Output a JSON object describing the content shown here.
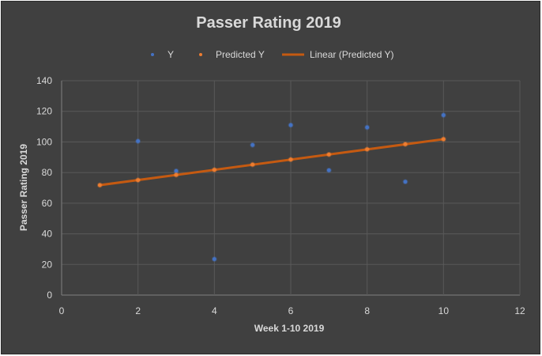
{
  "chart_data": {
    "type": "scatter",
    "title": "Passer Rating 2019",
    "xlabel": "Week 1-10 2019",
    "ylabel": "Passer Rating 2019",
    "xlim": [
      0,
      12
    ],
    "ylim": [
      0,
      140
    ],
    "x_ticks": [
      0,
      2,
      4,
      6,
      8,
      10,
      12
    ],
    "y_ticks": [
      0,
      20,
      40,
      60,
      80,
      100,
      120,
      140
    ],
    "grid": true,
    "legend_position": "top",
    "series": [
      {
        "name": "Y",
        "kind": "points",
        "color": "#4472c4",
        "x": [
          2,
          3,
          4,
          5,
          6,
          7,
          8,
          9,
          10
        ],
        "y": [
          100.5,
          81,
          23.5,
          98,
          111,
          81.5,
          109.5,
          74,
          117.5
        ]
      },
      {
        "name": "Predicted Y",
        "kind": "points",
        "color": "#ed7d31",
        "x": [
          1,
          2,
          3,
          4,
          5,
          6,
          7,
          8,
          9,
          10
        ],
        "y": [
          71.8,
          75.1,
          78.5,
          81.8,
          85.2,
          88.5,
          91.8,
          95.2,
          98.5,
          101.8
        ]
      },
      {
        "name": "Linear (Predicted Y)",
        "kind": "trendline",
        "color": "#c55a11",
        "x": [
          1,
          10
        ],
        "y": [
          71.8,
          101.8
        ]
      }
    ]
  }
}
